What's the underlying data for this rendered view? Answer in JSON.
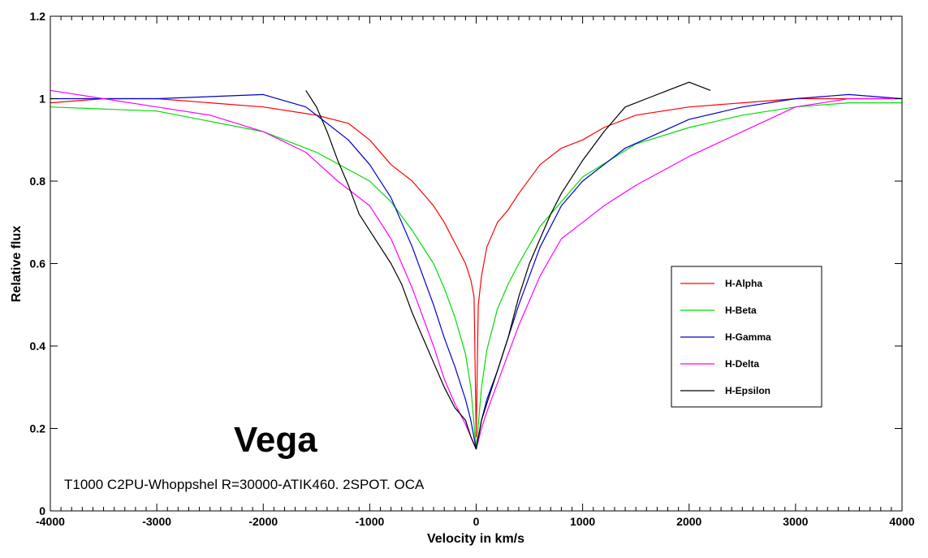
{
  "chart_data": {
    "type": "line",
    "title": "Vega",
    "subtitle": "T1000 C2PU-Whoppshel R=30000-ATIK460. 2SPOT. OCA",
    "xlabel": "Velocity in km/s",
    "ylabel": "Relative flux",
    "xlim": [
      -4000,
      4000
    ],
    "ylim": [
      0,
      1.2
    ],
    "xticks": [
      -4000,
      -3000,
      -2000,
      -1000,
      0,
      1000,
      2000,
      3000,
      4000
    ],
    "xtick_labels": [
      "-4000",
      "-3000",
      "-2000",
      "-1000",
      "0",
      "1000",
      "2000",
      "3000",
      "4000"
    ],
    "yticks": [
      0,
      0.2,
      0.4,
      0.6,
      0.8,
      1,
      1.2
    ],
    "ytick_labels": [
      "0",
      "0.2",
      "0.4",
      "0.6",
      "0.8",
      "1",
      "1.2"
    ],
    "grid": false,
    "legend_position": "right",
    "series": [
      {
        "name": "H-Alpha",
        "color": "#ff0000",
        "x": [
          -4000,
          -3500,
          -3000,
          -2500,
          -2000,
          -1500,
          -1200,
          -1000,
          -800,
          -600,
          -400,
          -300,
          -200,
          -100,
          -50,
          -20,
          0,
          20,
          50,
          100,
          200,
          300,
          400,
          600,
          800,
          1000,
          1200,
          1500,
          2000,
          2500,
          3000,
          3500,
          4000
        ],
        "y": [
          0.99,
          1.0,
          1.0,
          0.99,
          0.98,
          0.96,
          0.94,
          0.9,
          0.84,
          0.8,
          0.74,
          0.7,
          0.65,
          0.6,
          0.56,
          0.52,
          0.18,
          0.5,
          0.57,
          0.64,
          0.7,
          0.73,
          0.77,
          0.84,
          0.88,
          0.9,
          0.93,
          0.96,
          0.98,
          0.99,
          1.0,
          1.0,
          1.0
        ]
      },
      {
        "name": "H-Beta",
        "color": "#00dd00",
        "x": [
          -4000,
          -3000,
          -2000,
          -1500,
          -1000,
          -800,
          -600,
          -400,
          -300,
          -200,
          -100,
          -50,
          0,
          50,
          100,
          200,
          300,
          400,
          600,
          800,
          1000,
          1500,
          2000,
          2500,
          3000,
          3500,
          4000
        ],
        "y": [
          0.98,
          0.97,
          0.92,
          0.87,
          0.8,
          0.75,
          0.68,
          0.6,
          0.54,
          0.47,
          0.38,
          0.3,
          0.15,
          0.3,
          0.39,
          0.49,
          0.55,
          0.6,
          0.69,
          0.75,
          0.81,
          0.89,
          0.93,
          0.96,
          0.98,
          0.99,
          0.99
        ]
      },
      {
        "name": "H-Gamma",
        "color": "#0000cc",
        "x": [
          -4000,
          -3000,
          -2000,
          -1600,
          -1400,
          -1200,
          -1000,
          -800,
          -600,
          -400,
          -300,
          -200,
          -100,
          -50,
          0,
          50,
          100,
          200,
          300,
          400,
          600,
          800,
          1000,
          1400,
          2000,
          2500,
          3000,
          3500,
          4000
        ],
        "y": [
          1.0,
          1.0,
          1.01,
          0.98,
          0.94,
          0.9,
          0.84,
          0.76,
          0.64,
          0.5,
          0.42,
          0.35,
          0.27,
          0.22,
          0.15,
          0.22,
          0.27,
          0.34,
          0.42,
          0.5,
          0.64,
          0.74,
          0.8,
          0.88,
          0.95,
          0.98,
          1.0,
          1.01,
          1.0
        ]
      },
      {
        "name": "H-Delta",
        "color": "#ff00ff",
        "x": [
          -4000,
          -3500,
          -3000,
          -2500,
          -2000,
          -1600,
          -1300,
          -1000,
          -800,
          -600,
          -400,
          -300,
          -200,
          -100,
          -50,
          0,
          50,
          100,
          200,
          300,
          400,
          600,
          800,
          1000,
          1200,
          1500,
          2000,
          2500,
          3000,
          3500,
          4000
        ],
        "y": [
          1.02,
          1.0,
          0.98,
          0.96,
          0.92,
          0.87,
          0.8,
          0.74,
          0.66,
          0.54,
          0.4,
          0.32,
          0.26,
          0.21,
          0.18,
          0.15,
          0.2,
          0.24,
          0.31,
          0.38,
          0.45,
          0.57,
          0.66,
          0.7,
          0.74,
          0.79,
          0.86,
          0.92,
          0.98,
          1.0,
          1.0
        ]
      },
      {
        "name": "H-Epsilon",
        "color": "#000000",
        "x": [
          -1600,
          -1500,
          -1400,
          -1300,
          -1200,
          -1100,
          -1000,
          -900,
          -800,
          -700,
          -600,
          -500,
          -400,
          -300,
          -200,
          -100,
          -50,
          0,
          50,
          100,
          200,
          300,
          400,
          500,
          600,
          700,
          800,
          1000,
          1200,
          1400,
          1600,
          1800,
          2000,
          2200
        ],
        "y": [
          1.02,
          0.98,
          0.92,
          0.85,
          0.79,
          0.72,
          0.68,
          0.64,
          0.6,
          0.55,
          0.48,
          0.42,
          0.36,
          0.3,
          0.25,
          0.22,
          0.18,
          0.15,
          0.22,
          0.26,
          0.34,
          0.42,
          0.52,
          0.6,
          0.66,
          0.72,
          0.77,
          0.85,
          0.92,
          0.98,
          1.0,
          1.02,
          1.04,
          1.02
        ]
      }
    ]
  }
}
